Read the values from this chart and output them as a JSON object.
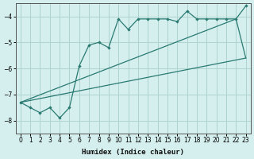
{
  "xlabel": "Humidex (Indice chaleur)",
  "bg_color": "#d4efed",
  "grid_color": "#aed4cf",
  "line_color": "#2a7a72",
  "xlim": [
    -0.5,
    23.5
  ],
  "ylim": [
    -8.5,
    -3.5
  ],
  "xticks": [
    0,
    1,
    2,
    3,
    4,
    5,
    6,
    7,
    8,
    9,
    10,
    11,
    12,
    13,
    14,
    15,
    16,
    17,
    18,
    19,
    20,
    21,
    22,
    23
  ],
  "yticks": [
    -8,
    -7,
    -6,
    -5,
    -4
  ],
  "series1_x": [
    0,
    1,
    2,
    3,
    4,
    5,
    6,
    7,
    8,
    9,
    10,
    11,
    12,
    13,
    14,
    15,
    16,
    17,
    18,
    19,
    20,
    21,
    22,
    23
  ],
  "series1_y": [
    -7.3,
    -7.5,
    -7.7,
    -7.5,
    -7.9,
    -7.5,
    -5.9,
    -5.1,
    -5.0,
    -5.2,
    -4.1,
    -4.5,
    -4.1,
    -4.1,
    -4.1,
    -4.1,
    -4.2,
    -3.8,
    -4.1,
    -4.1,
    -4.1,
    -4.1,
    -4.1,
    -3.6
  ],
  "series2_x": [
    0,
    23
  ],
  "series2_y": [
    -7.3,
    -5.6
  ],
  "series3_x": [
    0,
    22,
    23
  ],
  "series3_y": [
    -7.3,
    -4.1,
    -5.6
  ]
}
